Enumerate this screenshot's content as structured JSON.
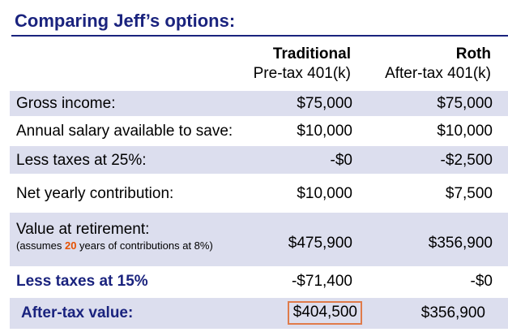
{
  "title": "Comparing Jeff’s options:",
  "columns": {
    "traditional": {
      "name": "Traditional",
      "subtitle": "Pre-tax 401(k)"
    },
    "roth": {
      "name": "Roth",
      "subtitle": "After-tax 401(k)"
    }
  },
  "rows": [
    {
      "label": "Gross income:",
      "traditional": "$75,000",
      "roth": "$75,000"
    },
    {
      "label": "Annual salary available to save:",
      "traditional": "$10,000",
      "roth": "$10,000"
    },
    {
      "label": "Less taxes at 25%:",
      "traditional": "-$0",
      "roth": "-$2,500"
    },
    {
      "label": "Net yearly contribution:",
      "traditional": "$10,000",
      "roth": "$7,500"
    },
    {
      "label": "Value  at retirement:",
      "note_before": "(assumes ",
      "note_years": "20",
      "note_after": " years of contributions at 8%)",
      "traditional": "$475,900",
      "roth": "$356,900"
    },
    {
      "label": "Less taxes at 15%",
      "traditional": "-$71,400",
      "roth": "-$0"
    },
    {
      "label": "After-tax value:",
      "traditional": "$404,500",
      "roth": "$356,900"
    }
  ],
  "colors": {
    "title": "#1a237e",
    "shade": "#dcdeee",
    "highlight": "#e65100",
    "box": "#e07b4a"
  }
}
